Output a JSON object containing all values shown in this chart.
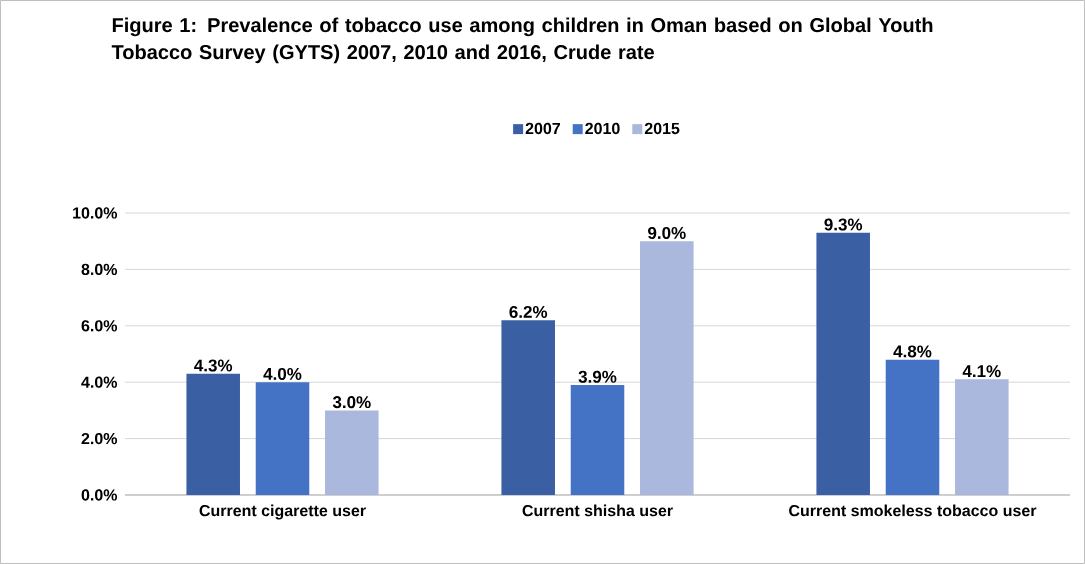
{
  "chart_data": {
    "type": "bar",
    "title": "Figure 1: Prevalence of tobacco use among children in Oman based on Global Youth Tobacco Survey (GYTS) 2007, 2010 and 2016, Crude rate",
    "categories": [
      "Current cigarette user",
      "Current shisha user",
      "Current smokeless tobacco user"
    ],
    "series": [
      {
        "name": "2007",
        "color": "#3a5fa3",
        "values": [
          4.3,
          6.2,
          9.3
        ],
        "value_labels": [
          "4.3%",
          "6.2%",
          "9.3%"
        ]
      },
      {
        "name": "2010",
        "color": "#4472c4",
        "values": [
          4.0,
          3.9,
          4.8
        ],
        "value_labels": [
          "4.0%",
          "3.9%",
          "4.8%"
        ]
      },
      {
        "name": "2015",
        "color": "#a9b8dc",
        "values": [
          3.0,
          9.0,
          4.1
        ],
        "value_labels": [
          "3.0%",
          "9.0%",
          "4.1%"
        ]
      }
    ],
    "ylim": [
      0,
      10
    ],
    "yticks": [
      {
        "value": 0,
        "label": "0.0%"
      },
      {
        "value": 2,
        "label": "2.0%"
      },
      {
        "value": 4,
        "label": "4.0%"
      },
      {
        "value": 6,
        "label": "6.0%"
      },
      {
        "value": 8,
        "label": "8.0%"
      },
      {
        "value": 10,
        "label": "10.0%"
      }
    ],
    "grid": "y",
    "legend": "top"
  }
}
